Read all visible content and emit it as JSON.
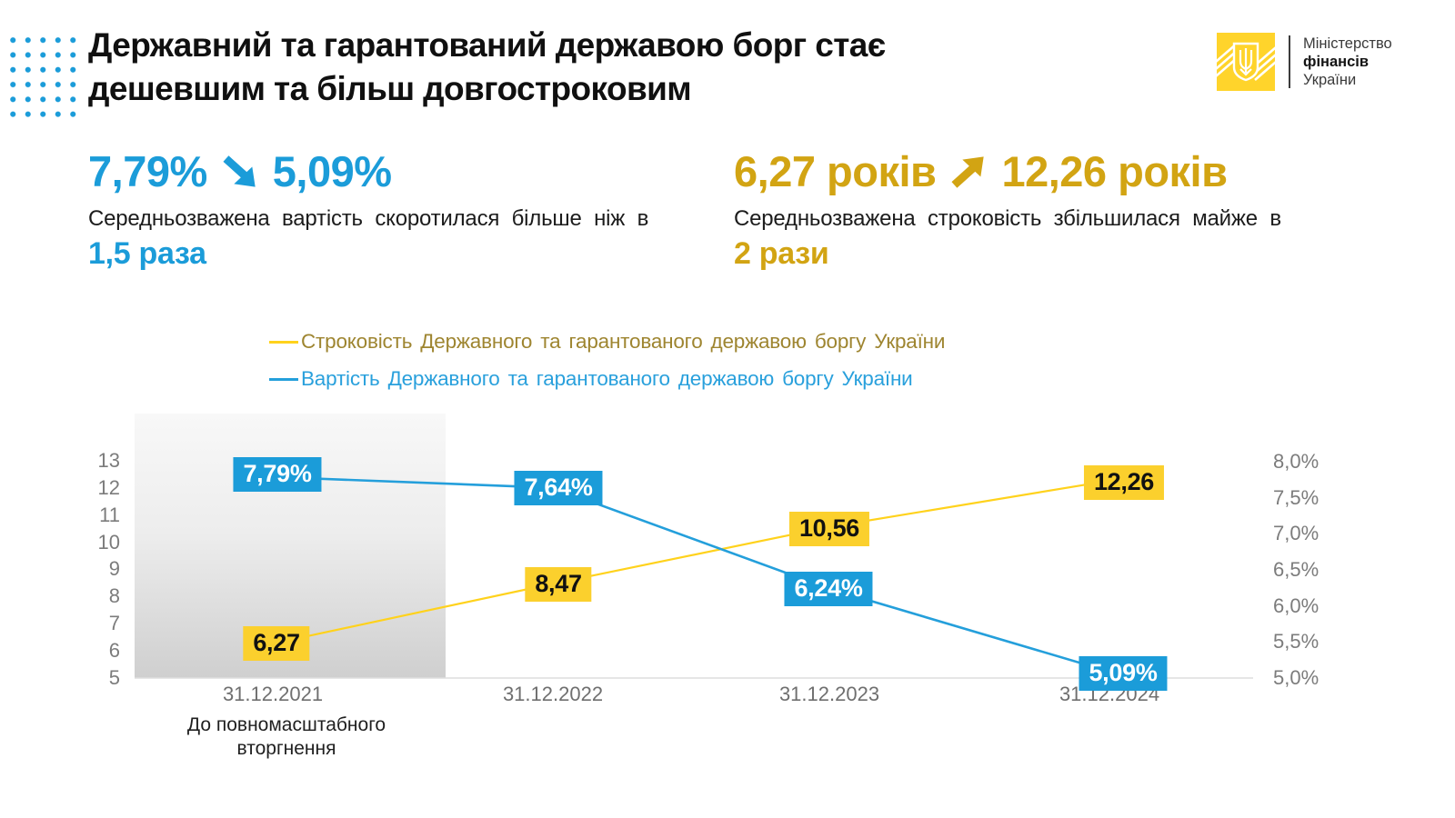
{
  "header": {
    "title_line1": "Державний та гарантований державою борг стає",
    "title_line2": "дешевшим та більш довгостроковим",
    "logo": {
      "org_line1": "Міністерство",
      "org_line2": "фінансів",
      "org_line3": "України"
    }
  },
  "stats": {
    "cost": {
      "from": "7,79%",
      "to": "5,09%",
      "description": "Середньозважена вартість скоротилася більше ніж в",
      "emphasis": "1,5 раза"
    },
    "maturity": {
      "from": "6,27 років",
      "to": "12,26 років",
      "description": "Середньозважена строковість збільшилася майже в",
      "emphasis": "2 рази"
    }
  },
  "colors": {
    "accent_blue": "#1b9cd9",
    "line_blue": "#249fdb",
    "line_yellow": "#ffd21c",
    "box_yellow": "#fbd02d",
    "gold_text": "#d2a413",
    "legend_gold_text": "#9e8530",
    "logo_yellow": "#ffd42b"
  },
  "legend": [
    {
      "label": "Строковість Державного та гарантованого державою боргу України",
      "swatch": "#ffd21c",
      "text_color": "#9e8530"
    },
    {
      "label": "Вартість Державного та гарантованого державою боргу України",
      "swatch": "#249fdb",
      "text_color": "#29a0dc"
    }
  ],
  "chart_data": {
    "type": "line",
    "categories": [
      "31.12.2021",
      "31.12.2022",
      "31.12.2023",
      "31.12.2024"
    ],
    "series": [
      {
        "name": "Строковість Державного та гарантованого державою боргу України",
        "axis": "left",
        "unit": "роки",
        "values": [
          6.27,
          8.47,
          10.56,
          12.26
        ],
        "labels": [
          "6,27",
          "8,47",
          "10,56",
          "12,26"
        ]
      },
      {
        "name": "Вартість Державного та гарантованого державою боргу України",
        "axis": "right",
        "unit": "%",
        "values": [
          7.79,
          7.64,
          6.24,
          5.09
        ],
        "labels": [
          "7,79%",
          "7,64%",
          "6,24%",
          "5,09%"
        ]
      }
    ],
    "left_axis": {
      "min": 5,
      "max": 13,
      "ticks": [
        "13",
        "12",
        "11",
        "10",
        "9",
        "8",
        "7",
        "6",
        "5"
      ]
    },
    "right_axis": {
      "min": 5,
      "max": 8,
      "ticks": [
        "8,0%",
        "7,5%",
        "7,0%",
        "6,5%",
        "6,0%",
        "5,5%",
        "5,0%"
      ]
    },
    "grid": "baseline-only",
    "legend_position": "top-center",
    "annotation": {
      "line1": "До повномасштабного",
      "line2": "вторгнення",
      "applies_to": "31.12.2021"
    }
  }
}
